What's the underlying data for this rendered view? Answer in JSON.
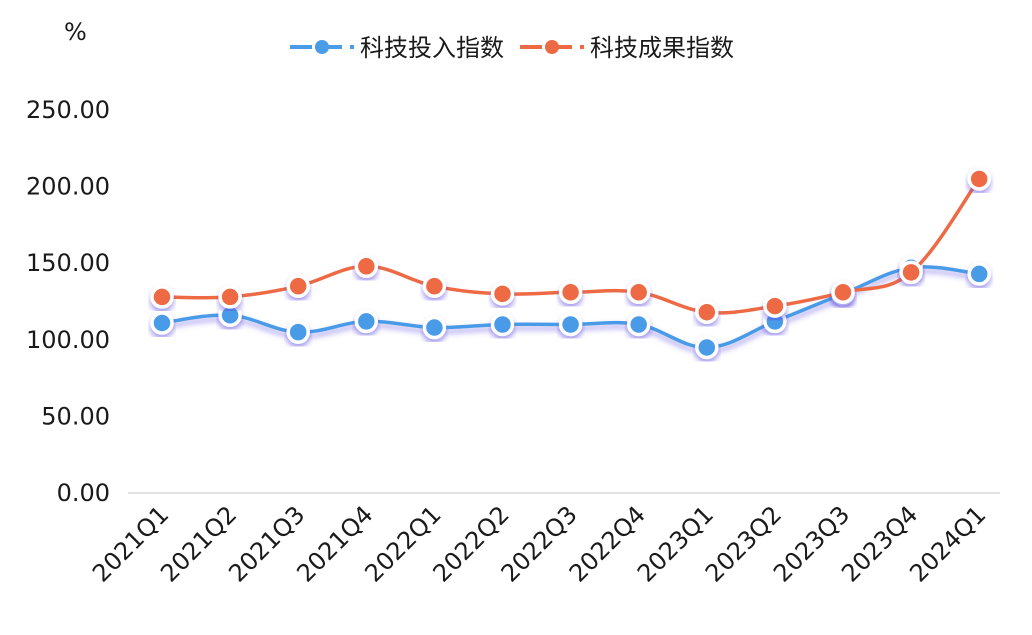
{
  "chart_data": {
    "type": "line",
    "unit": "%",
    "categories": [
      "2021Q1",
      "2021Q2",
      "2021Q3",
      "2021Q4",
      "2022Q1",
      "2022Q2",
      "2022Q3",
      "2022Q4",
      "2023Q1",
      "2023Q2",
      "2023Q3",
      "2023Q4",
      "2024Q1"
    ],
    "series": [
      {
        "name": "科技投入指数",
        "color": "#4a9be8",
        "values": [
          111,
          116,
          105,
          112,
          108,
          110,
          110,
          110,
          95,
          112,
          130,
          147,
          143
        ]
      },
      {
        "name": "科技成果指数",
        "color": "#ee6a45",
        "values": [
          128,
          128,
          135,
          148,
          135,
          130,
          131,
          131,
          118,
          122,
          131,
          144,
          205
        ]
      }
    ],
    "y_ticks": [
      "0.00",
      "50.00",
      "100.00",
      "150.00",
      "200.00",
      "250.00"
    ],
    "ylim": [
      0,
      250
    ],
    "legend_position": "top-center",
    "grid": false
  }
}
